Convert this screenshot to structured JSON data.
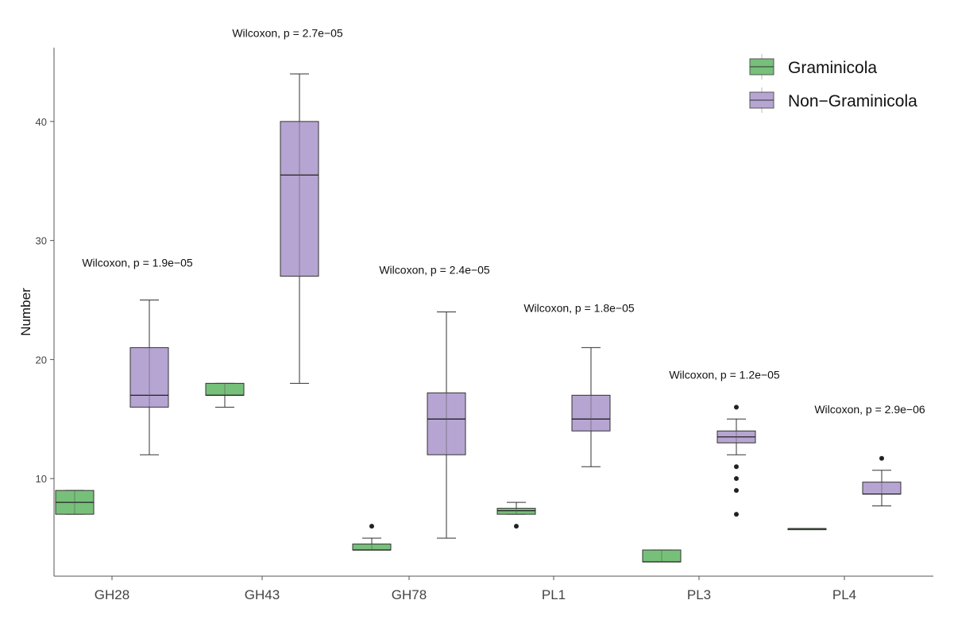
{
  "chart_data": {
    "type": "box",
    "ylabel": "Number",
    "xlabel": "",
    "ylim": [
      1.8,
      46.2
    ],
    "yticks": [
      10,
      20,
      30,
      40
    ],
    "grid": false,
    "legend_position": "top-right",
    "categories": [
      "GH28",
      "GH43",
      "GH78",
      "PL1",
      "PL3",
      "PL4"
    ],
    "series": [
      {
        "name": "Graminicola",
        "color": "#77c07a",
        "boxes": [
          {
            "category": "GH28",
            "whisker_low": 7,
            "q1": 7,
            "median": 8,
            "q3": 9,
            "whisker_high": 9,
            "outliers": []
          },
          {
            "category": "GH43",
            "whisker_low": 16,
            "q1": 17,
            "median": 17,
            "q3": 18,
            "whisker_high": 18,
            "outliers": []
          },
          {
            "category": "GH78",
            "whisker_low": 4,
            "q1": 4,
            "median": 4,
            "q3": 4.5,
            "whisker_high": 5,
            "outliers": [
              6
            ]
          },
          {
            "category": "PL1",
            "whisker_low": 7,
            "q1": 7,
            "median": 7.3,
            "q3": 7.5,
            "whisker_high": 8,
            "outliers": [
              6
            ]
          },
          {
            "category": "PL3",
            "whisker_low": 3,
            "q1": 3,
            "median": 3,
            "q3": 4,
            "whisker_high": 4,
            "outliers": []
          },
          {
            "category": "PL4",
            "whisker_low": 5.8,
            "q1": 5.8,
            "median": 5.8,
            "q3": 5.8,
            "whisker_high": 5.8,
            "outliers": []
          }
        ]
      },
      {
        "name": "Non−Graminicola",
        "color": "#b6a5d2",
        "boxes": [
          {
            "category": "GH28",
            "whisker_low": 12,
            "q1": 16,
            "median": 17,
            "q3": 21,
            "whisker_high": 25,
            "outliers": []
          },
          {
            "category": "GH43",
            "whisker_low": 18,
            "q1": 27,
            "median": 35.5,
            "q3": 40,
            "whisker_high": 44,
            "outliers": []
          },
          {
            "category": "GH78",
            "whisker_low": 5,
            "q1": 12,
            "median": 15,
            "q3": 17.2,
            "whisker_high": 24,
            "outliers": []
          },
          {
            "category": "PL1",
            "whisker_low": 11,
            "q1": 14,
            "median": 15,
            "q3": 17,
            "whisker_high": 21,
            "outliers": []
          },
          {
            "category": "PL3",
            "whisker_low": 12,
            "q1": 13,
            "median": 13.5,
            "q3": 14,
            "whisker_high": 15,
            "outliers": [
              16,
              11,
              10,
              9,
              7
            ]
          },
          {
            "category": "PL4",
            "whisker_low": 7.7,
            "q1": 8.7,
            "median": 8.7,
            "q3": 9.7,
            "whisker_high": 10.7,
            "outliers": [
              11.7
            ]
          }
        ]
      }
    ],
    "annotations": [
      {
        "category": "GH28",
        "text": "Wilcoxon, p = 1.9e−05",
        "y": 27.8
      },
      {
        "category": "GH43",
        "text": "Wilcoxon, p = 2.7e−05",
        "y": 47.1
      },
      {
        "category": "GH78",
        "text": "Wilcoxon, p = 2.4e−05",
        "y": 27.2
      },
      {
        "category": "PL1",
        "text": "Wilcoxon, p = 1.8e−05",
        "y": 24.0
      },
      {
        "category": "PL3",
        "text": "Wilcoxon, p = 1.2e−05",
        "y": 18.4
      },
      {
        "category": "PL4",
        "text": "Wilcoxon, p = 2.9e−06",
        "y": 15.5
      }
    ]
  }
}
